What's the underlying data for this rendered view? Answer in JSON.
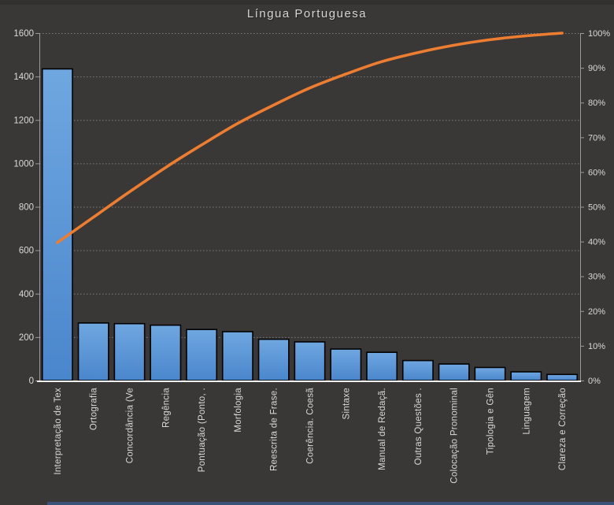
{
  "title": "Língua Portuguesa",
  "colors": {
    "background": "#3A3837",
    "bar_fill_top": "#6FA7E0",
    "bar_fill_bottom": "#4A86CC",
    "bar_border": "#000000",
    "line": "#ED7D31",
    "gridline": "#8F8F8F",
    "axis_line": "#9A9A9A",
    "bottom_axis_line": "#F0F0F0",
    "axis_text": "#D9D9D9",
    "title_text": "#D6D6D6",
    "bottom_strip": "#3A5178"
  },
  "chart_data": {
    "type": "bar",
    "subtype": "pareto-with-cumulative-line",
    "title": "Língua Portuguesa",
    "grid": "horizontal-dotted",
    "legend": "none",
    "categories": [
      "Interpretação de Tex",
      "Ortografia",
      "Concordância (Ve",
      "Regência",
      "Pontuação (Ponto, .",
      "Morfologia",
      "Reescrita de Frase.",
      "Coerência. Coesã",
      "Sintaxe",
      "Manual de Redaçã.",
      "Outras Questões .",
      "Colocação Pronominal",
      "Tipologia e Gên",
      "Linguagem",
      "Clareza e Correção"
    ],
    "series": [
      {
        "role": "bars",
        "values": [
          1435,
          265,
          262,
          255,
          235,
          225,
          190,
          178,
          145,
          130,
          92,
          76,
          60,
          40,
          28
        ]
      },
      {
        "role": "cumulative-line",
        "percent": [
          39.7,
          47.0,
          54.3,
          61.3,
          67.8,
          74.0,
          79.3,
          84.2,
          88.2,
          91.8,
          94.4,
          96.5,
          98.1,
          99.2,
          100.0
        ]
      }
    ],
    "left_axis": {
      "min": 0,
      "max": 1600,
      "step": 200,
      "tick_labels": [
        "0",
        "200",
        "400",
        "600",
        "800",
        "1000",
        "1200",
        "1400",
        "1600"
      ]
    },
    "right_axis": {
      "min": 0,
      "max": 100,
      "step": 10,
      "tick_labels": [
        "0%",
        "10%",
        "20%",
        "30%",
        "40%",
        "50%",
        "60%",
        "70%",
        "80%",
        "90%",
        "100%"
      ]
    }
  }
}
